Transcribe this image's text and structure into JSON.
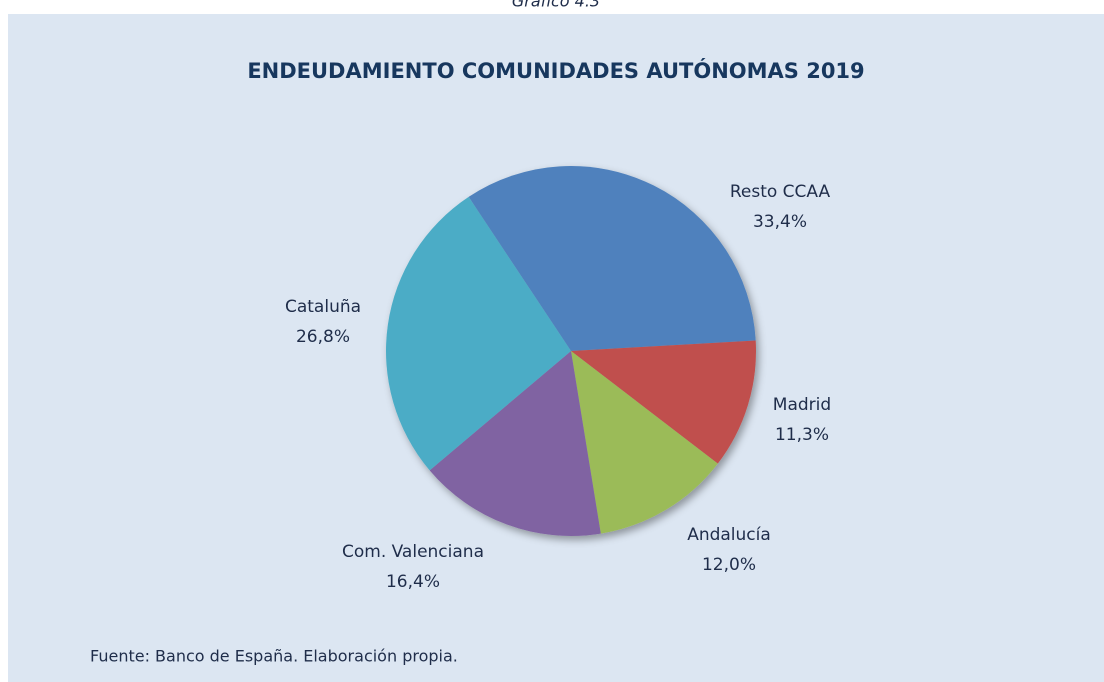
{
  "caption": "Gráfico 4.3",
  "chart_data": {
    "type": "pie",
    "title": "ENDEUDAMIENTO COMUNIDADES AUTÓNOMAS 2019",
    "categories": [
      "Resto CCAA",
      "Madrid",
      "Andalucía",
      "Com. Valenciana",
      "Cataluña"
    ],
    "values": [
      33.4,
      11.3,
      12.0,
      16.4,
      26.8
    ],
    "value_labels": [
      "33,4%",
      "11,3%",
      "12,0%",
      "16,4%",
      "26,8%"
    ],
    "colors": [
      "#4f81bd",
      "#c0504d",
      "#9bbb59",
      "#8064a2",
      "#4bacc6"
    ],
    "source": "Fuente: Banco de España. Elaboración propia."
  }
}
